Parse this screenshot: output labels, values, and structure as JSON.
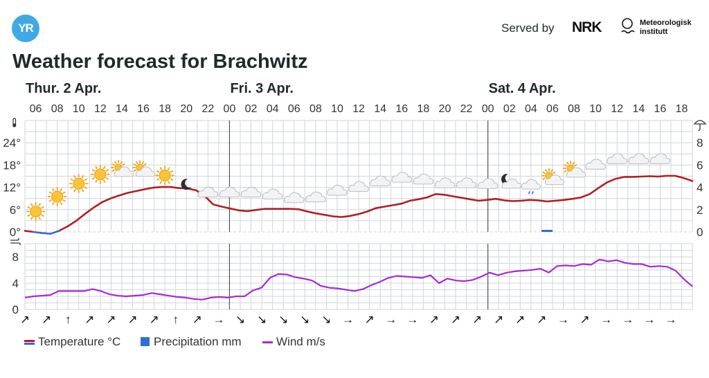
{
  "header": {
    "logo_text": "YR",
    "served_by": "Served by",
    "nrk_logo_text": "NRK",
    "met_logo_line1": "Meteorologisk",
    "met_logo_line2": "institutt"
  },
  "title": "Weather forecast for Brachwitz",
  "colors": {
    "temperature": "#b11e24",
    "temperature_below_zero": "#3b67c8",
    "precipitation": "#2f6fd6",
    "wind": "#a42ad6",
    "grid": "#cfd6db",
    "day_separator": "#555555"
  },
  "legend": {
    "temperature": "Temperature °C",
    "precipitation": "Precipitation mm",
    "wind": "Wind m/s"
  },
  "chart_data": [
    {
      "type": "line",
      "name": "temperature-precipitation",
      "days": [
        {
          "label": "Thur. 2 Apr.",
          "start_hour_index": 0
        },
        {
          "label": "Fri. 3 Apr.",
          "start_hour_index": 19
        },
        {
          "label": "Sat. 4 Apr.",
          "start_hour_index": 43
        }
      ],
      "hour_labels": [
        "06",
        "08",
        "10",
        "12",
        "14",
        "16",
        "18",
        "20",
        "22",
        "00",
        "02",
        "04",
        "06",
        "08",
        "10",
        "12",
        "14",
        "16",
        "18",
        "20",
        "22",
        "00",
        "02",
        "04",
        "06",
        "08",
        "10",
        "12",
        "14",
        "16",
        "18"
      ],
      "first_hour": 5,
      "hours_shown": 62,
      "y_left": {
        "ticks": [
          "0°",
          "6°",
          "12°",
          "18°",
          "24°"
        ],
        "values": [
          0,
          6,
          12,
          18,
          24
        ],
        "ylim": [
          0,
          30
        ]
      },
      "y_right": {
        "ticks": [
          "0",
          "2",
          "4",
          "6",
          "8"
        ],
        "values": [
          0,
          2,
          4,
          6,
          8
        ],
        "ylim": [
          0,
          10
        ]
      },
      "temperature": [
        0.3,
        0,
        -0.3,
        -0.5,
        0.3,
        1.5,
        3,
        4.8,
        6.5,
        8,
        9,
        9.8,
        10.5,
        11,
        11.5,
        11.9,
        12.1,
        12.1,
        11.8,
        11.7,
        11.2,
        9.7,
        7.4,
        6.8,
        6.3,
        5.8,
        5.6,
        5.9,
        6.2,
        6.2,
        6.2,
        6.2,
        6.1,
        5.5,
        5.0,
        4.6,
        4.2,
        4.0,
        4.3,
        4.8,
        5.5,
        6.4,
        6.8,
        7.2,
        7.6,
        8.4,
        8.8,
        9.3,
        10.2,
        10.0,
        9.6,
        9.2,
        8.8,
        8.4,
        8.6,
        8.9,
        8.5,
        8.3,
        8.4,
        8.6,
        8.5,
        8.2,
        8.4,
        8.6,
        8.9,
        9.3,
        10.2,
        11.8,
        13.3,
        14.3,
        14.8,
        14.8,
        14.9,
        15.0,
        14.9,
        15.1,
        15.1,
        14.5,
        13.7
      ],
      "temperature_hour_offset": 0,
      "precipitation": [
        {
          "hour": 53.5,
          "value": 0.1
        }
      ],
      "symbols": [
        {
          "hour": 6,
          "icon": "sun",
          "temp": 5.5
        },
        {
          "hour": 8,
          "icon": "sun",
          "temp": 9.5
        },
        {
          "hour": 10,
          "icon": "sun",
          "temp": 13
        },
        {
          "hour": 12,
          "icon": "sun",
          "temp": 15.5
        },
        {
          "hour": 14,
          "icon": "partly-cloudy-day",
          "temp": 16.2
        },
        {
          "hour": 16,
          "icon": "partly-cloudy-day",
          "temp": 16.2
        },
        {
          "hour": 18,
          "icon": "sun",
          "temp": 15.2
        },
        {
          "hour": 20,
          "icon": "moon",
          "temp": 12.8
        },
        {
          "hour": 22,
          "icon": "cloud",
          "temp": 10.5
        },
        {
          "hour": 24,
          "icon": "cloud",
          "temp": 10.5
        },
        {
          "hour": 26,
          "icon": "cloud",
          "temp": 10.5
        },
        {
          "hour": 28,
          "icon": "cloud",
          "temp": 10
        },
        {
          "hour": 30,
          "icon": "cloud",
          "temp": 9
        },
        {
          "hour": 32,
          "icon": "cloud",
          "temp": 9.2
        },
        {
          "hour": 34,
          "icon": "cloud",
          "temp": 11
        },
        {
          "hour": 36,
          "icon": "cloud",
          "temp": 12
        },
        {
          "hour": 38,
          "icon": "cloud",
          "temp": 13.5
        },
        {
          "hour": 40,
          "icon": "cloud",
          "temp": 14.5
        },
        {
          "hour": 42,
          "icon": "cloud",
          "temp": 14
        },
        {
          "hour": 44,
          "icon": "cloud",
          "temp": 13
        },
        {
          "hour": 46,
          "icon": "cloud",
          "temp": 13
        },
        {
          "hour": 48,
          "icon": "cloud",
          "temp": 12.8
        },
        {
          "hour": 50,
          "icon": "partly-cloudy-night",
          "temp": 13
        },
        {
          "hour": 52,
          "icon": "rain-cloud",
          "temp": 12.6
        },
        {
          "hour": 54,
          "icon": "partly-cloudy-day",
          "temp": 14
        },
        {
          "hour": 56,
          "icon": "partly-cloudy-day",
          "temp": 16
        },
        {
          "hour": 58,
          "icon": "cloud",
          "temp": 18
        },
        {
          "hour": 60,
          "icon": "cloud",
          "temp": 19.5
        },
        {
          "hour": 62,
          "icon": "cloud",
          "temp": 19.5
        },
        {
          "hour": 64,
          "icon": "cloud",
          "temp": 19.5
        }
      ]
    },
    {
      "type": "line",
      "name": "wind",
      "y": {
        "ticks": [
          "0",
          "4",
          "8"
        ],
        "values": [
          0,
          4,
          8
        ],
        "ylim": [
          0,
          10
        ],
        "unit": "m/s"
      },
      "wind": [
        1.8,
        2,
        2.1,
        2.2,
        2.8,
        2.8,
        2.8,
        2.8,
        3.1,
        2.8,
        2.3,
        2.1,
        2,
        2.1,
        2.2,
        2.5,
        2.3,
        2.1,
        1.9,
        1.8,
        1.6,
        1.5,
        1.8,
        1.9,
        1.8,
        2,
        2,
        2.9,
        3.3,
        4.8,
        5.4,
        5.3,
        4.9,
        4.7,
        4.4,
        3.6,
        3.3,
        3.2,
        3,
        2.8,
        3.1,
        3.7,
        4.2,
        4.8,
        5.1,
        5,
        4.9,
        4.8,
        5.2,
        4,
        4.7,
        4.4,
        4.3,
        4.5,
        5,
        5.6,
        5.2,
        5.6,
        5.8,
        5.9,
        6,
        6.2,
        5.6,
        6.6,
        6.7,
        6.6,
        6.9,
        6.8,
        7.6,
        7.3,
        7.5,
        7.1,
        6.9,
        6.9,
        6.5,
        6.6,
        6.5,
        5.9,
        4.6,
        3.5
      ],
      "wind_arrows": [
        {
          "hour": 5,
          "dir": "↗"
        },
        {
          "hour": 7,
          "dir": "↗"
        },
        {
          "hour": 9,
          "dir": "↑"
        },
        {
          "hour": 11,
          "dir": "↗"
        },
        {
          "hour": 13,
          "dir": "↗"
        },
        {
          "hour": 15,
          "dir": "↗"
        },
        {
          "hour": 17,
          "dir": "↗"
        },
        {
          "hour": 19,
          "dir": "↑"
        },
        {
          "hour": 21,
          "dir": "↗"
        },
        {
          "hour": 23,
          "dir": "→"
        },
        {
          "hour": 25,
          "dir": "↘"
        },
        {
          "hour": 27,
          "dir": "↘"
        },
        {
          "hour": 29,
          "dir": "↘"
        },
        {
          "hour": 31,
          "dir": "↘"
        },
        {
          "hour": 33,
          "dir": "↘"
        },
        {
          "hour": 35,
          "dir": "→"
        },
        {
          "hour": 37,
          "dir": "↗"
        },
        {
          "hour": 39,
          "dir": "→"
        },
        {
          "hour": 41,
          "dir": "→"
        },
        {
          "hour": 43,
          "dir": "↗"
        },
        {
          "hour": 45,
          "dir": "↗"
        },
        {
          "hour": 47,
          "dir": "↗"
        },
        {
          "hour": 49,
          "dir": "↗"
        },
        {
          "hour": 51,
          "dir": "↗"
        },
        {
          "hour": 53,
          "dir": "↗"
        },
        {
          "hour": 55,
          "dir": "→"
        },
        {
          "hour": 57,
          "dir": "↗"
        },
        {
          "hour": 59,
          "dir": "→"
        },
        {
          "hour": 61,
          "dir": "→"
        },
        {
          "hour": 63,
          "dir": "→"
        },
        {
          "hour": 65,
          "dir": "→"
        }
      ]
    }
  ]
}
